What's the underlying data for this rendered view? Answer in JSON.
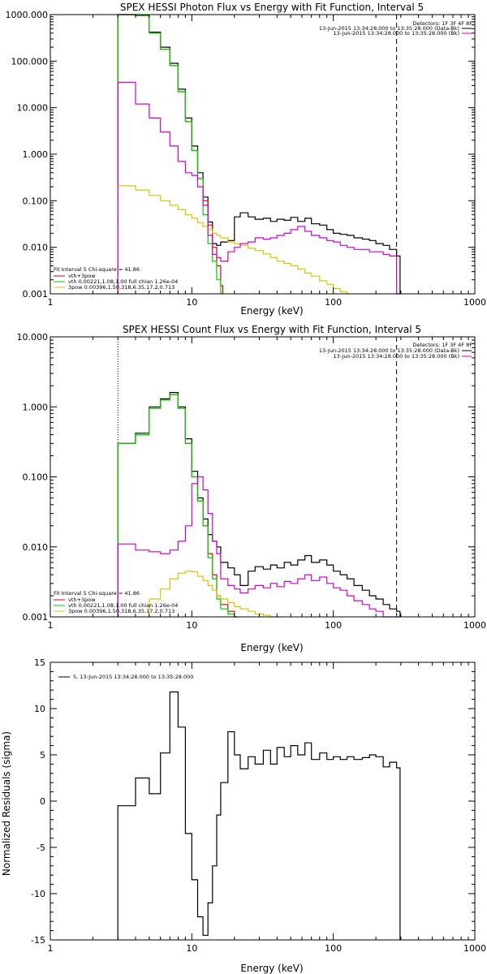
{
  "colors": {
    "black": "#000000",
    "red": "#e00000",
    "green": "#00d000",
    "magenta": "#d000d0",
    "yellow": "#e0c000"
  },
  "chart_data": [
    {
      "type": "line",
      "title": "SPEX HESSI Photon Flux vs Energy with Fit Function, Interval 5",
      "xlabel": "Energy (keV)",
      "ylabel": "",
      "xscale": "log",
      "yscale": "log",
      "xlim": [
        1,
        1000
      ],
      "ylim": [
        0.001,
        1000
      ],
      "xticks": [
        "1",
        "10",
        "100",
        "1000"
      ],
      "yticks": [
        "0.001",
        "0.010",
        "0.100",
        "1.000",
        "10.000",
        "100.000",
        "1000.000"
      ],
      "header": [
        {
          "text": "Detectors: 1F 3F 4F 8F",
          "color": "#000000"
        },
        {
          "text": "13-Jun-2015 13:34:28.000 to 13:35:28.000 (Data-Bk)",
          "color": "#000000"
        },
        {
          "text": "13-Jun-2015 13:34:28.000 to 13:35:28.000 (Bk)",
          "color": "#d000d0"
        }
      ],
      "legend": [
        {
          "text": "Fit Interval 5   Chi-square = 41.86",
          "color": "#000000"
        },
        {
          "text": "vth+3pow",
          "color": "#e00000"
        },
        {
          "text": "vth 0.00221,1.08,1.00  full chian 1.26e-04",
          "color": "#00d000"
        },
        {
          "text": "3pow 0.00396,1.50,318,6.35,17.2,0.713",
          "color": "#e0c000"
        }
      ],
      "vlines": [
        3,
        280
      ],
      "series": [
        {
          "name": "Data-Bk",
          "color": "#000000",
          "x": [
            3,
            4,
            5,
            6,
            7,
            8,
            9,
            10,
            11,
            12,
            13,
            14,
            15,
            16,
            18,
            20,
            22,
            25,
            28,
            32,
            36,
            40,
            45,
            50,
            56,
            63,
            70,
            80,
            90,
            100,
            112,
            125,
            140,
            160,
            180,
            200,
            225,
            250,
            280
          ],
          "y": [
            1000,
            950,
            420,
            200,
            90,
            25,
            6,
            1.5,
            0.4,
            0.12,
            0.035,
            0.012,
            0.011,
            0.013,
            0.014,
            0.045,
            0.055,
            0.045,
            0.04,
            0.042,
            0.036,
            0.04,
            0.038,
            0.044,
            0.036,
            0.042,
            0.032,
            0.03,
            0.024,
            0.02,
            0.019,
            0.018,
            0.016,
            0.015,
            0.014,
            0.012,
            0.011,
            0.009,
            0.0065
          ]
        },
        {
          "name": "vth+3pow",
          "color": "#e00000",
          "x": [
            3,
            4,
            5,
            6,
            7,
            8,
            9,
            10,
            11,
            12,
            13,
            14,
            15,
            16
          ],
          "y": [
            1000,
            950,
            400,
            180,
            80,
            22,
            5,
            1.2,
            0.3,
            0.1,
            0.03,
            0.01,
            0.004,
            0.0015
          ]
        },
        {
          "name": "vth",
          "color": "#00d000",
          "x": [
            3,
            4,
            5,
            6,
            7,
            8,
            9,
            10,
            11,
            12,
            13,
            14,
            15,
            16
          ],
          "y": [
            1000,
            950,
            400,
            180,
            80,
            22,
            5,
            1.2,
            0.3,
            0.05,
            0.012,
            0.005,
            0.002,
            0.001
          ]
        },
        {
          "name": "3pow",
          "color": "#e0c000",
          "x": [
            3,
            4,
            5,
            6,
            7,
            8,
            9,
            10,
            11,
            12,
            13,
            14,
            15,
            16,
            18,
            20,
            22,
            25,
            28,
            32,
            36,
            40,
            45,
            50,
            56,
            63,
            70,
            80,
            90,
            100,
            112,
            125
          ],
          "y": [
            0.21,
            0.17,
            0.13,
            0.1,
            0.08,
            0.065,
            0.05,
            0.042,
            0.034,
            0.028,
            0.024,
            0.02,
            0.018,
            0.016,
            0.013,
            0.012,
            0.011,
            0.0095,
            0.0085,
            0.0072,
            0.006,
            0.005,
            0.0045,
            0.004,
            0.0034,
            0.0028,
            0.0024,
            0.0019,
            0.0016,
            0.0013,
            0.0011,
            0.001
          ]
        },
        {
          "name": "Bk",
          "color": "#d000d0",
          "x": [
            3,
            4,
            5,
            6,
            7,
            8,
            9,
            10,
            11,
            12,
            13,
            14,
            15,
            16,
            18,
            20,
            22,
            25,
            28,
            32,
            36,
            40,
            45,
            50,
            56,
            63,
            70,
            80,
            90,
            100,
            112,
            125,
            140,
            160,
            180,
            200,
            225,
            250,
            280
          ],
          "y": [
            35,
            12,
            6,
            3,
            1.5,
            0.7,
            0.4,
            0.35,
            0.2,
            0.08,
            0.018,
            0.007,
            0.006,
            0.005,
            0.008,
            0.01,
            0.012,
            0.013,
            0.016,
            0.015,
            0.016,
            0.018,
            0.02,
            0.024,
            0.028,
            0.022,
            0.018,
            0.016,
            0.014,
            0.013,
            0.011,
            0.01,
            0.009,
            0.009,
            0.008,
            0.008,
            0.007,
            0.0065,
            0.001
          ]
        }
      ]
    },
    {
      "type": "line",
      "title": "SPEX HESSI Count Flux vs Energy with Fit Function, Interval 5",
      "xlabel": "Energy (keV)",
      "ylabel": "",
      "xscale": "log",
      "yscale": "log",
      "xlim": [
        1,
        1000
      ],
      "ylim": [
        0.001,
        10
      ],
      "xticks": [
        "1",
        "10",
        "100",
        "1000"
      ],
      "yticks": [
        "0.001",
        "0.010",
        "0.100",
        "1.000",
        "10.000"
      ],
      "header": [
        {
          "text": "Detectors: 1F 3F 4F 8F",
          "color": "#000000"
        },
        {
          "text": "13-Jun-2015 13:34:28.000 to 13:35:28.000 (Data-Bk)",
          "color": "#000000"
        },
        {
          "text": "13-Jun-2015 13:34:28.000 to 13:35:28.000 (Bk)",
          "color": "#d000d0"
        }
      ],
      "legend": [
        {
          "text": "Fit Interval 5   Chi-square = 41.86",
          "color": "#000000"
        },
        {
          "text": "vth+3pow",
          "color": "#e00000"
        },
        {
          "text": "vth 0.00221,1.08,1.00  full chian 1.26e-04",
          "color": "#00d000"
        },
        {
          "text": "3pow 0.00396,1.50,318,6.35,17.2,0.713",
          "color": "#e0c000"
        }
      ],
      "vlines": [
        3,
        280
      ],
      "series": [
        {
          "name": "Data-Bk",
          "color": "#000000",
          "x": [
            3,
            4,
            5,
            6,
            7,
            8,
            9,
            10,
            11,
            12,
            13,
            14,
            15,
            16,
            18,
            20,
            22,
            25,
            28,
            32,
            36,
            40,
            45,
            50,
            56,
            63,
            70,
            80,
            90,
            100,
            112,
            125,
            140,
            160,
            180,
            200,
            225,
            250,
            280
          ],
          "y": [
            0.3,
            0.42,
            1.0,
            1.3,
            1.6,
            1.0,
            0.35,
            0.12,
            0.05,
            0.025,
            0.015,
            0.012,
            0.01,
            0.006,
            0.005,
            0.004,
            0.0028,
            0.0045,
            0.0052,
            0.0048,
            0.0055,
            0.005,
            0.006,
            0.0055,
            0.0065,
            0.0075,
            0.006,
            0.0065,
            0.0055,
            0.0045,
            0.004,
            0.0035,
            0.0028,
            0.0024,
            0.002,
            0.0018,
            0.0015,
            0.0013,
            0.0012
          ]
        },
        {
          "name": "vth+3pow",
          "color": "#e00000",
          "x": [
            3,
            4,
            5,
            6,
            7,
            8,
            9,
            10,
            11,
            12,
            13,
            14,
            15,
            16,
            18,
            20
          ],
          "y": [
            0.3,
            0.4,
            0.95,
            1.25,
            1.5,
            0.95,
            0.3,
            0.1,
            0.045,
            0.02,
            0.008,
            0.004,
            0.002,
            0.0015,
            0.0012,
            0.001
          ]
        },
        {
          "name": "vth",
          "color": "#00d000",
          "x": [
            3,
            4,
            5,
            6,
            7,
            8,
            9,
            10,
            11,
            12,
            13,
            14,
            15,
            16,
            18,
            20
          ],
          "y": [
            0.3,
            0.4,
            0.95,
            1.25,
            1.5,
            0.95,
            0.3,
            0.1,
            0.045,
            0.02,
            0.007,
            0.0035,
            0.0018,
            0.0013,
            0.0011,
            0.001
          ]
        },
        {
          "name": "3pow",
          "color": "#e0c000",
          "x": [
            5,
            6,
            7,
            8,
            9,
            10,
            11,
            12,
            13,
            14,
            15,
            16,
            18,
            20,
            22,
            25,
            28,
            32,
            36,
            40
          ],
          "y": [
            0.0018,
            0.0025,
            0.0035,
            0.0042,
            0.0045,
            0.0044,
            0.0038,
            0.0033,
            0.0028,
            0.0024,
            0.002,
            0.0018,
            0.0016,
            0.0014,
            0.0013,
            0.0012,
            0.0011,
            0.00105,
            0.001,
            0.001
          ]
        },
        {
          "name": "Bk",
          "color": "#d000d0",
          "x": [
            3,
            4,
            5,
            6,
            7,
            8,
            9,
            10,
            11,
            12,
            13,
            14,
            15,
            16,
            18,
            20,
            22,
            25,
            28,
            32,
            36,
            40,
            45,
            50,
            56,
            63,
            70,
            80,
            90,
            100,
            112,
            125,
            140,
            160,
            180,
            200,
            225,
            250,
            280
          ],
          "y": [
            0.011,
            0.009,
            0.0085,
            0.008,
            0.009,
            0.012,
            0.02,
            0.08,
            0.1,
            0.065,
            0.03,
            0.012,
            0.008,
            0.0035,
            0.0028,
            0.0025,
            0.0022,
            0.0025,
            0.0028,
            0.0026,
            0.003,
            0.0027,
            0.0032,
            0.003,
            0.0035,
            0.004,
            0.0033,
            0.0037,
            0.003,
            0.0026,
            0.0024,
            0.002,
            0.0017,
            0.0015,
            0.0013,
            0.0012,
            0.001,
            0.001,
            0.001
          ]
        }
      ]
    },
    {
      "type": "line",
      "title": "",
      "xlabel": "Energy (keV)",
      "ylabel": "Normalized Residuals (sigma)",
      "xscale": "log",
      "yscale": "linear",
      "xlim": [
        1,
        1000
      ],
      "ylim": [
        -15,
        15
      ],
      "xticks": [
        "1",
        "10",
        "100",
        "1000"
      ],
      "yticks": [
        "15",
        "10",
        "5",
        "0",
        "-5",
        "-10",
        "-15"
      ],
      "legend": [
        {
          "text": "5, 13-Jun-2015 13:34:28.000 to 13:35:28.000",
          "color": "#000000"
        }
      ],
      "series": [
        {
          "name": "5, 13-Jun-2015 13:34:28.000 to 13:35:28.000",
          "color": "#000000",
          "x": [
            3,
            4,
            5,
            6,
            7,
            8,
            9,
            10,
            11,
            12,
            13,
            14,
            15,
            16,
            18,
            20,
            22,
            25,
            28,
            32,
            36,
            40,
            45,
            50,
            56,
            63,
            70,
            80,
            90,
            100,
            112,
            125,
            140,
            160,
            180,
            200,
            225,
            250,
            280
          ],
          "y": [
            -0.5,
            2.5,
            0.8,
            5.2,
            11.8,
            8.0,
            -3.5,
            -8.5,
            -12.5,
            -14.5,
            -11.0,
            -7.0,
            -1.5,
            2.0,
            7.5,
            5.0,
            3.5,
            4.8,
            4.0,
            5.5,
            4.0,
            5.8,
            4.8,
            6.0,
            5.0,
            6.3,
            4.5,
            5.2,
            4.5,
            4.8,
            4.5,
            4.8,
            4.5,
            4.7,
            5.0,
            4.8,
            3.7,
            4.2,
            3.6
          ]
        }
      ]
    }
  ]
}
